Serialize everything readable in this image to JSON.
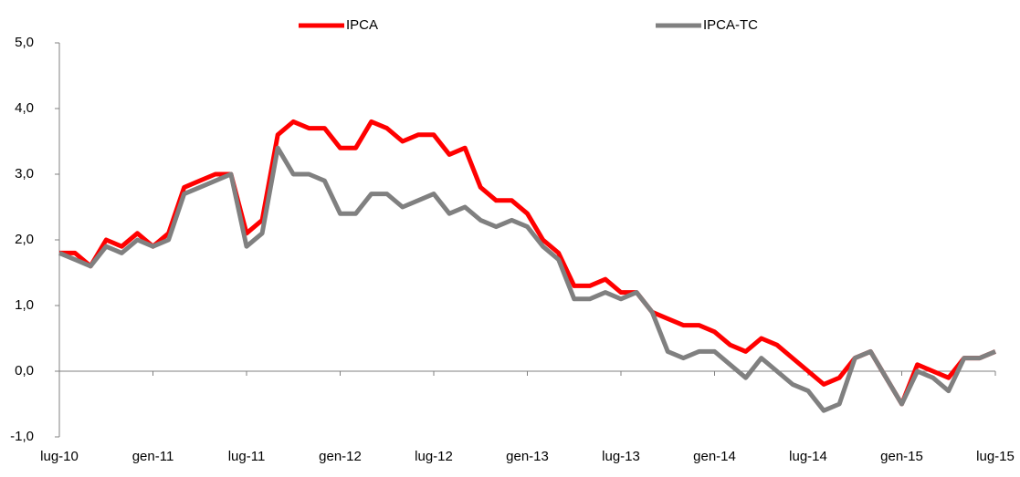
{
  "chart_data": {
    "type": "line",
    "categories": [
      "lug-10",
      null,
      null,
      null,
      null,
      null,
      "gen-11",
      null,
      null,
      null,
      null,
      null,
      "lug-11",
      null,
      null,
      null,
      null,
      null,
      "gen-12",
      null,
      null,
      null,
      null,
      null,
      "lug-12",
      null,
      null,
      null,
      null,
      null,
      "gen-13",
      null,
      null,
      null,
      null,
      null,
      "lug-13",
      null,
      null,
      null,
      null,
      null,
      "gen-14",
      null,
      null,
      null,
      null,
      null,
      "lug-14",
      null,
      null,
      null,
      null,
      null,
      "gen-15",
      null,
      null,
      null,
      null,
      null,
      "lug-15"
    ],
    "series": [
      {
        "name": "IPCA",
        "color": "#ff0000",
        "values": [
          1.8,
          1.8,
          1.6,
          2.0,
          1.9,
          2.1,
          1.9,
          2.1,
          2.8,
          2.9,
          3.0,
          3.0,
          2.1,
          2.3,
          3.6,
          3.8,
          3.7,
          3.7,
          3.4,
          3.4,
          3.8,
          3.7,
          3.5,
          3.6,
          3.6,
          3.3,
          3.4,
          2.8,
          2.6,
          2.6,
          2.4,
          2.0,
          1.8,
          1.3,
          1.3,
          1.4,
          1.2,
          1.2,
          0.9,
          0.8,
          0.7,
          0.7,
          0.6,
          0.4,
          0.3,
          0.5,
          0.4,
          0.2,
          0.0,
          -0.2,
          -0.1,
          0.2,
          0.3,
          -0.1,
          -0.5,
          0.1,
          0.0,
          -0.1,
          0.2,
          0.2,
          0.3
        ]
      },
      {
        "name": "IPCA-TC",
        "color": "#808080",
        "values": [
          1.8,
          1.7,
          1.6,
          1.9,
          1.8,
          2.0,
          1.9,
          2.0,
          2.7,
          2.8,
          2.9,
          3.0,
          1.9,
          2.1,
          3.4,
          3.0,
          3.0,
          2.9,
          2.4,
          2.4,
          2.7,
          2.7,
          2.5,
          2.6,
          2.7,
          2.4,
          2.5,
          2.3,
          2.2,
          2.3,
          2.2,
          1.9,
          1.7,
          1.1,
          1.1,
          1.2,
          1.1,
          1.2,
          0.9,
          0.3,
          0.2,
          0.3,
          0.3,
          0.1,
          -0.1,
          0.2,
          0.0,
          -0.2,
          -0.3,
          -0.6,
          -0.5,
          0.2,
          0.3,
          -0.1,
          -0.5,
          0.0,
          -0.1,
          -0.3,
          0.2,
          0.2,
          0.3
        ]
      }
    ],
    "ylim": [
      -1,
      5
    ],
    "yticks": [
      {
        "value": -1,
        "label": "-1,0"
      },
      {
        "value": 0,
        "label": "0,0"
      },
      {
        "value": 1,
        "label": "1,0"
      },
      {
        "value": 2,
        "label": "2,0"
      },
      {
        "value": 3,
        "label": "3,0"
      },
      {
        "value": 4,
        "label": "4,0"
      },
      {
        "value": 5,
        "label": "5,0"
      }
    ],
    "legend": "top"
  }
}
